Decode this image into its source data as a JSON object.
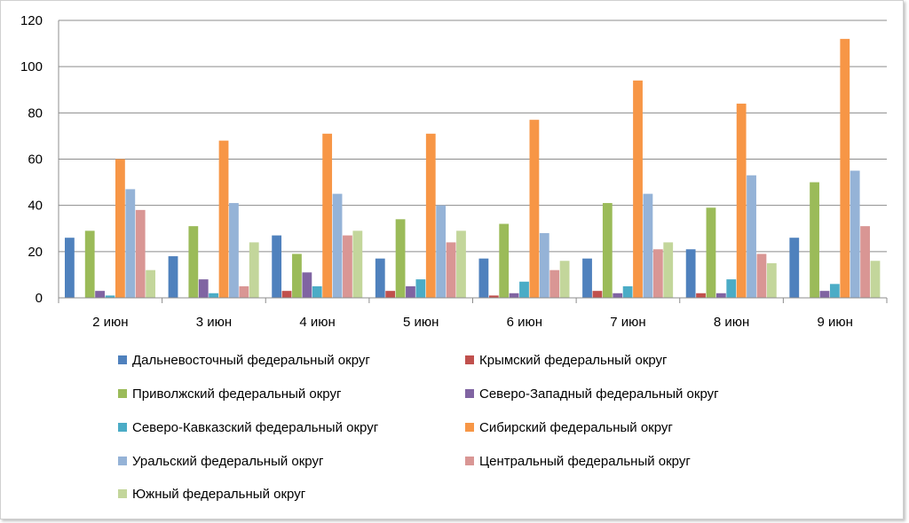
{
  "chart_data": {
    "type": "bar",
    "categories": [
      "2 июн",
      "3 июн",
      "4 июн",
      "5 июн",
      "6 июн",
      "7 июн",
      "8 июн",
      "9 июн"
    ],
    "ylim": [
      0,
      120
    ],
    "yticks": [
      0,
      20,
      40,
      60,
      80,
      100,
      120
    ],
    "grid": true,
    "legend_position": "bottom",
    "series": [
      {
        "name": "Дальневосточный федеральный округ",
        "color": "#4F81BD",
        "values": [
          26,
          18,
          27,
          17,
          17,
          17,
          21,
          26
        ]
      },
      {
        "name": "Крымский федеральный округ",
        "color": "#C0504D",
        "values": [
          0,
          0,
          3,
          3,
          1,
          3,
          2,
          0
        ]
      },
      {
        "name": "Приволжский федеральный округ",
        "color": "#9BBB59",
        "values": [
          29,
          31,
          19,
          34,
          32,
          41,
          39,
          50
        ]
      },
      {
        "name": "Северо-Западный федеральный округ",
        "color": "#8064A2",
        "values": [
          3,
          8,
          11,
          5,
          2,
          2,
          2,
          3
        ]
      },
      {
        "name": "Северо-Кавказский федеральный округ",
        "color": "#4BACC6",
        "values": [
          1,
          2,
          5,
          8,
          7,
          5,
          8,
          6
        ]
      },
      {
        "name": "Сибирский федеральный округ",
        "color": "#F79646",
        "values": [
          60,
          68,
          71,
          71,
          77,
          94,
          84,
          112
        ]
      },
      {
        "name": "Уральский федеральный округ",
        "color": "#95B3D7",
        "values": [
          47,
          41,
          45,
          40,
          28,
          45,
          53,
          55
        ]
      },
      {
        "name": "Центральный федеральный округ",
        "color": "#D99694",
        "values": [
          38,
          5,
          27,
          24,
          12,
          21,
          19,
          31
        ]
      },
      {
        "name": "Южный федеральный округ",
        "color": "#C3D69B",
        "values": [
          12,
          24,
          29,
          29,
          16,
          24,
          15,
          16
        ]
      }
    ]
  }
}
